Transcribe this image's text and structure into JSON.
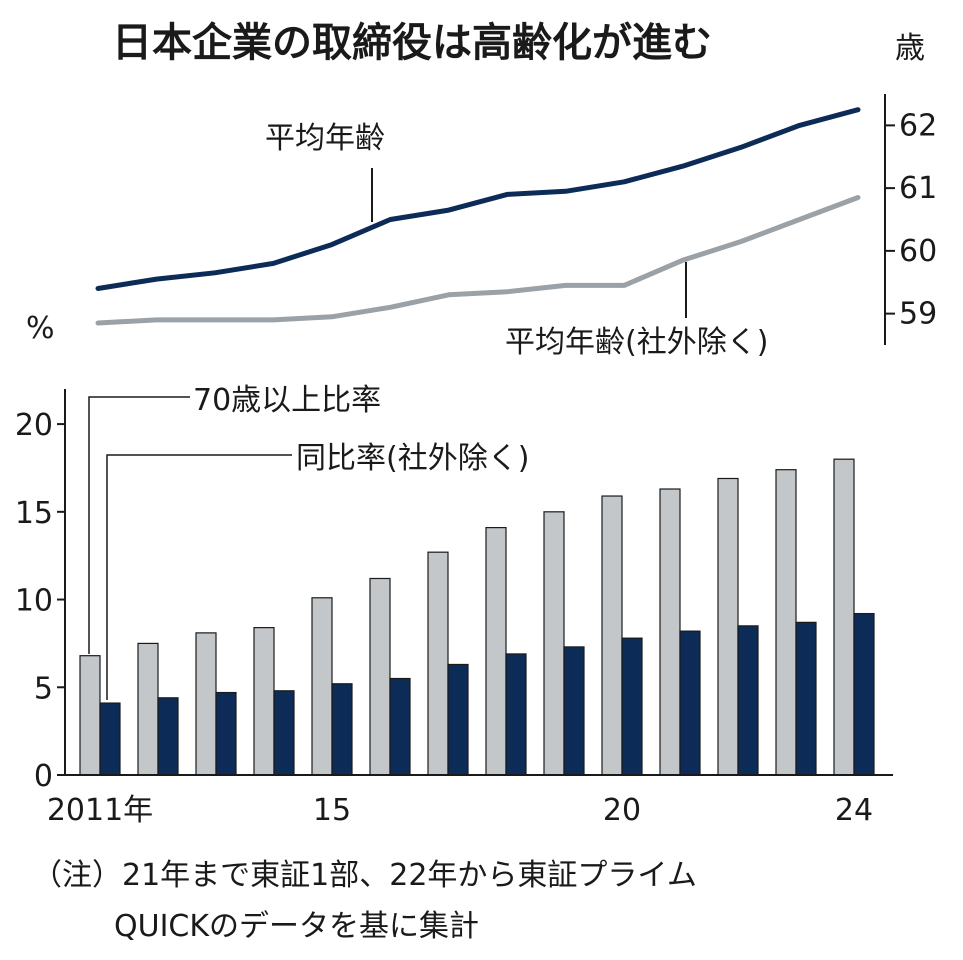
{
  "title": "日本企業の取締役は高齢化が進む",
  "note_line1": "（注）21年まで東証1部、22年から東証プライム",
  "note_line2": "QUICKのデータを基に集計",
  "colors": {
    "navy": "#0d2b57",
    "gray_line": "#9aa1a7",
    "gray_bar": "#c4c7ca",
    "axis": "#1a1a1a"
  },
  "chart_data": [
    {
      "type": "line",
      "x": [
        2011,
        2012,
        2013,
        2014,
        2015,
        2016,
        2017,
        2018,
        2019,
        2020,
        2021,
        2022,
        2023,
        2024
      ],
      "series": [
        {
          "name": "平均年齢",
          "values": [
            59.4,
            59.55,
            59.65,
            59.8,
            60.1,
            60.5,
            60.65,
            60.9,
            60.95,
            61.1,
            61.35,
            61.65,
            62.0,
            62.25
          ]
        },
        {
          "name": "平均年齢(社外除く)",
          "values": [
            58.85,
            58.9,
            58.9,
            58.9,
            58.95,
            59.1,
            59.3,
            59.35,
            59.45,
            59.45,
            59.85,
            60.15,
            60.5,
            60.85
          ]
        }
      ],
      "ylabel": "歳",
      "yticks": [
        59,
        60,
        61,
        62
      ],
      "ylim": [
        58.5,
        62.5
      ],
      "grid": false
    },
    {
      "type": "bar",
      "categories": [
        2011,
        2012,
        2013,
        2014,
        2015,
        2016,
        2017,
        2018,
        2019,
        2020,
        2021,
        2022,
        2023,
        2024
      ],
      "xtick_labels": [
        {
          "year": 2011,
          "text": "2011年"
        },
        {
          "year": 2015,
          "text": "15"
        },
        {
          "year": 2020,
          "text": "20"
        },
        {
          "year": 2024,
          "text": "24"
        }
      ],
      "series": [
        {
          "name": "70歳以上比率",
          "values": [
            6.8,
            7.5,
            8.1,
            8.4,
            10.1,
            11.2,
            12.7,
            14.1,
            15.0,
            15.9,
            16.3,
            16.9,
            17.4,
            18.0
          ]
        },
        {
          "name": "同比率(社外除く)",
          "values": [
            4.1,
            4.4,
            4.7,
            4.8,
            5.2,
            5.5,
            6.3,
            6.9,
            7.3,
            7.8,
            8.2,
            8.5,
            8.7,
            9.2
          ]
        }
      ],
      "ylabel": "%",
      "yticks": [
        0,
        5,
        10,
        15,
        20
      ],
      "ylim": [
        0,
        22
      ],
      "grid": false
    }
  ]
}
